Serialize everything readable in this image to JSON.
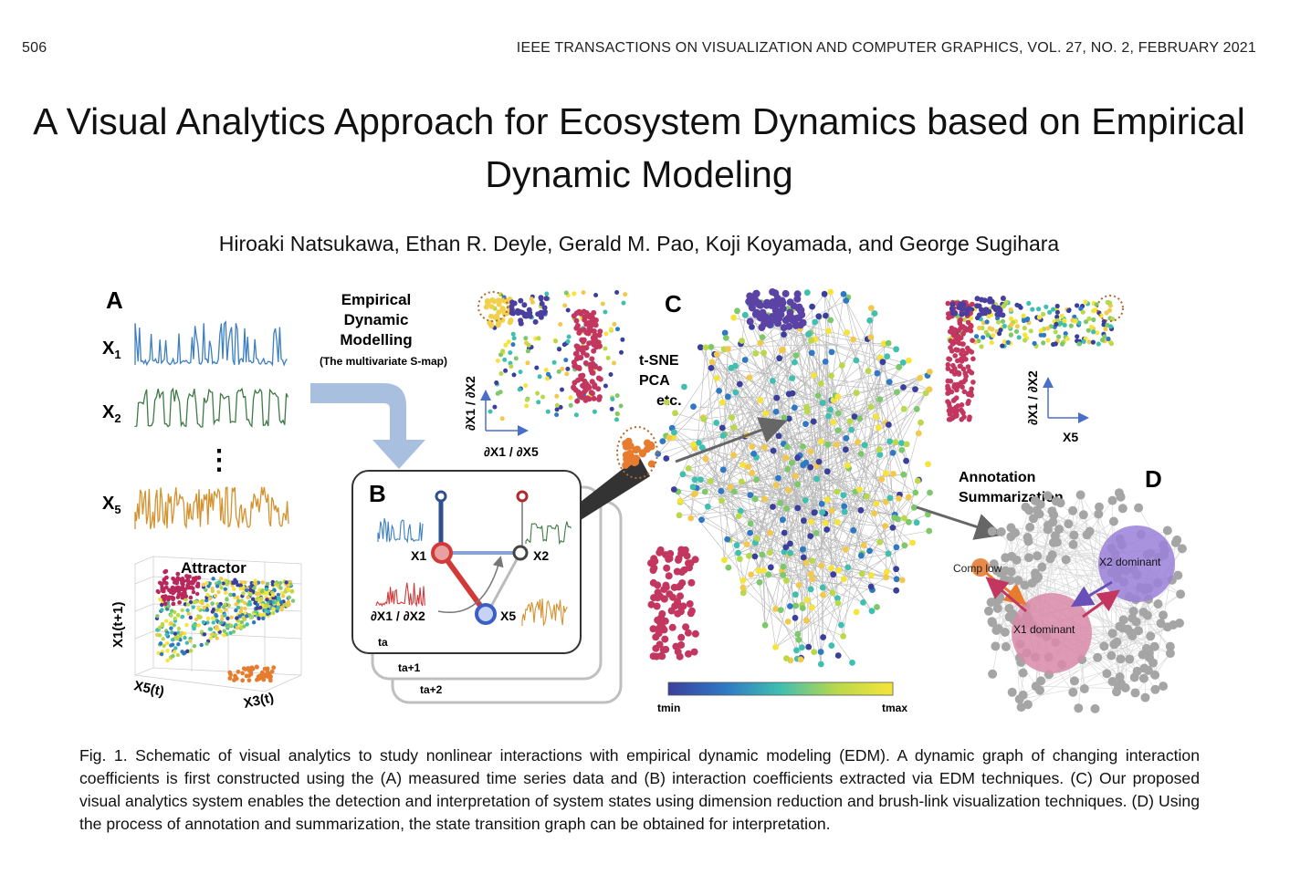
{
  "header": {
    "page_number": "506",
    "journal": "IEEE TRANSACTIONS ON VISUALIZATION AND COMPUTER GRAPHICS, VOL. 27, NO. 2, FEBRUARY 2021"
  },
  "title": "A Visual Analytics Approach for Ecosystem Dynamics based on Empirical Dynamic Modeling",
  "authors": "Hiroaki Natsukawa, Ethan R. Deyle, Gerald M. Pao, Koji Koyamada, and George Sugihara",
  "figure": {
    "panel_labels": {
      "a": "A",
      "b": "B",
      "c": "C",
      "d": "D"
    },
    "series_labels": {
      "x1": "X",
      "x1_sub": "1",
      "x2": "X",
      "x2_sub": "2",
      "x5": "X",
      "x5_sub": "5"
    },
    "vdots": "⋮",
    "attractor": {
      "title": "Attractor",
      "ylabel": "X1(t+1)",
      "xlabel_left": "X5(t)",
      "xlabel_right": "X3(t)"
    },
    "edm": {
      "line1": "Empirical",
      "line2": "Dynamic",
      "line3": "Modelling",
      "line4": "(The multivariate S-map)"
    },
    "panel_b": {
      "node_x1": "X1",
      "node_x2": "X2",
      "node_x5": "X5",
      "partial": "∂X1 / ∂X2",
      "t_a": "ta",
      "t_a1": "ta+1",
      "t_a2": "ta+2"
    },
    "dim_reduction": {
      "line1": "t-SNE",
      "line2": "PCA",
      "line3": "etc."
    },
    "scatter_left": {
      "xlabel": "∂X1 / ∂X5",
      "ylabel": "∂X1 / ∂X2"
    },
    "scatter_right": {
      "xlabel": "X5",
      "ylabel": "∂X1 / ∂X2"
    },
    "colorbar": {
      "min": "tmin",
      "max": "tmax"
    },
    "annotation": {
      "line1": "Annotation",
      "line2": "Summarization"
    },
    "panel_d": {
      "comp_low": "Comp low",
      "x1_dominant": "X1 dominant",
      "x2_dominant": "X2 dominant"
    }
  },
  "caption": "Fig. 1.  Schematic of visual analytics to study nonlinear interactions with empirical dynamic modeling (EDM). A dynamic graph of changing interaction coefficients is first constructed using the (A) measured time series data and (B) interaction coefficients extracted via EDM techniques.  (C) Our proposed visual analytics system enables the detection and interpretation of system states using dimension reduction and brush-link visualization techniques.  (D) Using the process of annotation and summarization, the state transition graph can be obtained for interpretation."
}
